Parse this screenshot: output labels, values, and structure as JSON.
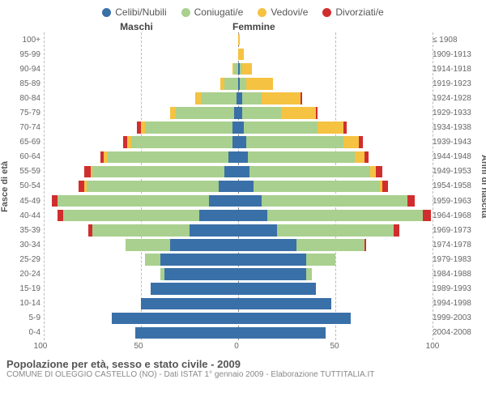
{
  "legend": [
    {
      "label": "Celibi/Nubili",
      "color": "#3a70a8"
    },
    {
      "label": "Coniugati/e",
      "color": "#a9d08e"
    },
    {
      "label": "Vedovi/e",
      "color": "#f5c242"
    },
    {
      "label": "Divorziati/e",
      "color": "#d02e2e"
    }
  ],
  "headers": {
    "male": "Maschi",
    "female": "Femmine",
    "right": "≤ 1908"
  },
  "axis_labels": {
    "left": "Fasce di età",
    "right": "Anni di nascita"
  },
  "xmax": 100,
  "xticks": [
    0,
    50,
    100
  ],
  "age_bands": [
    "100+",
    "95-99",
    "90-94",
    "85-89",
    "80-84",
    "75-79",
    "70-74",
    "65-69",
    "60-64",
    "55-59",
    "50-54",
    "45-49",
    "40-44",
    "35-39",
    "30-34",
    "25-29",
    "20-24",
    "15-19",
    "10-14",
    "5-9",
    "0-4"
  ],
  "birth_bands": [
    "≤ 1908",
    "1909-1913",
    "1914-1918",
    "1919-1923",
    "1924-1928",
    "1929-1933",
    "1934-1938",
    "1939-1943",
    "1944-1948",
    "1949-1953",
    "1954-1958",
    "1959-1963",
    "1964-1968",
    "1969-1973",
    "1974-1978",
    "1979-1983",
    "1984-1988",
    "1989-1993",
    "1994-1998",
    "1999-2003",
    "2004-2008"
  ],
  "male": [
    {
      "celibi": 0,
      "coniugati": 0,
      "vedovi": 0,
      "divorziati": 0
    },
    {
      "celibi": 0,
      "coniugati": 0,
      "vedovi": 0,
      "divorziati": 0
    },
    {
      "celibi": 0,
      "coniugati": 2,
      "vedovi": 1,
      "divorziati": 0
    },
    {
      "celibi": 0,
      "coniugati": 7,
      "vedovi": 2,
      "divorziati": 0
    },
    {
      "celibi": 1,
      "coniugati": 18,
      "vedovi": 3,
      "divorziati": 0
    },
    {
      "celibi": 2,
      "coniugati": 30,
      "vedovi": 3,
      "divorziati": 0
    },
    {
      "celibi": 3,
      "coniugati": 45,
      "vedovi": 2,
      "divorziati": 2
    },
    {
      "celibi": 3,
      "coniugati": 52,
      "vedovi": 2,
      "divorziati": 2
    },
    {
      "celibi": 5,
      "coniugati": 62,
      "vedovi": 2,
      "divorziati": 2
    },
    {
      "celibi": 7,
      "coniugati": 68,
      "vedovi": 1,
      "divorziati": 3
    },
    {
      "celibi": 10,
      "coniugati": 68,
      "vedovi": 1,
      "divorziati": 3
    },
    {
      "celibi": 15,
      "coniugati": 78,
      "vedovi": 0,
      "divorziati": 3
    },
    {
      "celibi": 20,
      "coniugati": 70,
      "vedovi": 0,
      "divorziati": 3
    },
    {
      "celibi": 25,
      "coniugati": 50,
      "vedovi": 0,
      "divorziati": 2
    },
    {
      "celibi": 35,
      "coniugati": 23,
      "vedovi": 0,
      "divorziati": 0
    },
    {
      "celibi": 40,
      "coniugati": 8,
      "vedovi": 0,
      "divorziati": 0
    },
    {
      "celibi": 38,
      "coniugati": 2,
      "vedovi": 0,
      "divorziati": 0
    },
    {
      "celibi": 45,
      "coniugati": 0,
      "vedovi": 0,
      "divorziati": 0
    },
    {
      "celibi": 50,
      "coniugati": 0,
      "vedovi": 0,
      "divorziati": 0
    },
    {
      "celibi": 65,
      "coniugati": 0,
      "vedovi": 0,
      "divorziati": 0
    },
    {
      "celibi": 53,
      "coniugati": 0,
      "vedovi": 0,
      "divorziati": 0
    }
  ],
  "female": [
    {
      "celibi": 0,
      "coniugati": 0,
      "vedovi": 1,
      "divorziati": 0
    },
    {
      "celibi": 0,
      "coniugati": 0,
      "vedovi": 3,
      "divorziati": 0
    },
    {
      "celibi": 1,
      "coniugati": 1,
      "vedovi": 5,
      "divorziati": 0
    },
    {
      "celibi": 1,
      "coniugati": 3,
      "vedovi": 14,
      "divorziati": 0
    },
    {
      "celibi": 2,
      "coniugati": 10,
      "vedovi": 20,
      "divorziati": 1
    },
    {
      "celibi": 2,
      "coniugati": 20,
      "vedovi": 18,
      "divorziati": 1
    },
    {
      "celibi": 3,
      "coniugati": 38,
      "vedovi": 13,
      "divorziati": 2
    },
    {
      "celibi": 4,
      "coniugati": 50,
      "vedovi": 8,
      "divorziati": 2
    },
    {
      "celibi": 5,
      "coniugati": 55,
      "vedovi": 5,
      "divorziati": 2
    },
    {
      "celibi": 6,
      "coniugati": 62,
      "vedovi": 3,
      "divorziati": 3
    },
    {
      "celibi": 8,
      "coniugati": 65,
      "vedovi": 1,
      "divorziati": 3
    },
    {
      "celibi": 12,
      "coniugati": 75,
      "vedovi": 0,
      "divorziati": 4
    },
    {
      "celibi": 15,
      "coniugati": 80,
      "vedovi": 0,
      "divorziati": 4
    },
    {
      "celibi": 20,
      "coniugati": 60,
      "vedovi": 0,
      "divorziati": 3
    },
    {
      "celibi": 30,
      "coniugati": 35,
      "vedovi": 0,
      "divorziati": 1
    },
    {
      "celibi": 35,
      "coniugati": 15,
      "vedovi": 0,
      "divorziati": 0
    },
    {
      "celibi": 35,
      "coniugati": 3,
      "vedovi": 0,
      "divorziati": 0
    },
    {
      "celibi": 40,
      "coniugati": 0,
      "vedovi": 0,
      "divorziati": 0
    },
    {
      "celibi": 48,
      "coniugati": 0,
      "vedovi": 0,
      "divorziati": 0
    },
    {
      "celibi": 58,
      "coniugati": 0,
      "vedovi": 0,
      "divorziati": 0
    },
    {
      "celibi": 45,
      "coniugati": 0,
      "vedovi": 0,
      "divorziati": 0
    }
  ],
  "caption": {
    "title": "Popolazione per età, sesso e stato civile - 2009",
    "sub": "COMUNE DI OLEGGIO CASTELLO (NO) - Dati ISTAT 1° gennaio 2009 - Elaborazione TUTTITALIA.IT"
  },
  "colors": {
    "grid": "#bbbbbb",
    "zero": "#888888",
    "text": "#555555",
    "bg": "#ffffff"
  }
}
